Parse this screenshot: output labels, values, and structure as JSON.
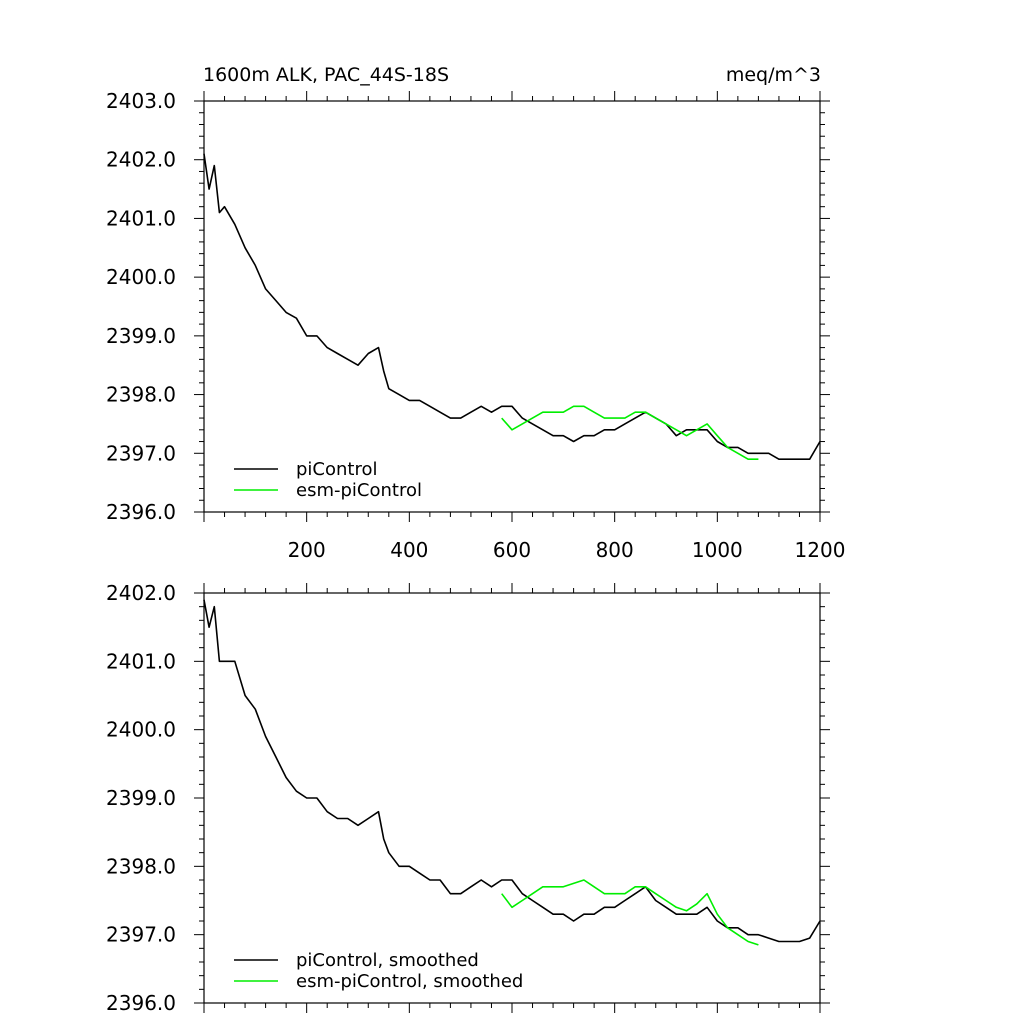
{
  "chart_data": [
    {
      "type": "line",
      "title": "1600m ALK, PAC_44S-18S",
      "units": "meq/m^3",
      "xlim": [
        0,
        1200
      ],
      "ylim": [
        2396.0,
        2403.0
      ],
      "x_ticks": [
        200,
        400,
        600,
        800,
        1000,
        1200
      ],
      "x_tick_labels": [
        "200",
        "400",
        "600",
        "800",
        "1000",
        "1200"
      ],
      "y_ticks": [
        2396.0,
        2397.0,
        2398.0,
        2399.0,
        2400.0,
        2401.0,
        2402.0,
        2403.0
      ],
      "y_tick_labels": [
        "2396.0",
        "2397.0",
        "2398.0",
        "2399.0",
        "2400.0",
        "2401.0",
        "2402.0",
        "2403.0"
      ],
      "legend": [
        "piControl",
        "esm-piControl"
      ],
      "legend_position": "bottom-left",
      "series": [
        {
          "name": "piControl",
          "color": "#000000",
          "x": [
            0,
            10,
            20,
            30,
            40,
            60,
            80,
            100,
            120,
            140,
            160,
            180,
            200,
            220,
            240,
            260,
            280,
            300,
            320,
            340,
            350,
            360,
            380,
            400,
            420,
            440,
            460,
            480,
            500,
            520,
            540,
            560,
            580,
            600,
            620,
            640,
            660,
            680,
            700,
            720,
            740,
            760,
            780,
            800,
            820,
            840,
            860,
            880,
            900,
            920,
            940,
            960,
            980,
            1000,
            1020,
            1040,
            1060,
            1080,
            1100,
            1120,
            1140,
            1160,
            1180,
            1200
          ],
          "y": [
            2402.1,
            2401.5,
            2401.9,
            2401.1,
            2401.2,
            2400.9,
            2400.5,
            2400.2,
            2399.8,
            2399.6,
            2399.4,
            2399.3,
            2399.0,
            2399.0,
            2398.8,
            2398.7,
            2398.6,
            2398.5,
            2398.7,
            2398.8,
            2398.4,
            2398.1,
            2398.0,
            2397.9,
            2397.9,
            2397.8,
            2397.7,
            2397.6,
            2397.6,
            2397.7,
            2397.8,
            2397.7,
            2397.8,
            2397.8,
            2397.6,
            2397.5,
            2397.4,
            2397.3,
            2397.3,
            2397.2,
            2397.3,
            2397.3,
            2397.4,
            2397.4,
            2397.5,
            2397.6,
            2397.7,
            2397.6,
            2397.5,
            2397.3,
            2397.4,
            2397.4,
            2397.4,
            2397.2,
            2397.1,
            2397.1,
            2397.0,
            2397.0,
            2397.0,
            2396.9,
            2396.9,
            2396.9,
            2396.9,
            2397.2
          ]
        },
        {
          "name": "esm-piControl",
          "color": "#00ee00",
          "x": [
            580,
            600,
            620,
            640,
            660,
            680,
            700,
            720,
            740,
            760,
            780,
            800,
            820,
            840,
            860,
            880,
            900,
            920,
            940,
            960,
            980,
            1000,
            1020,
            1040,
            1060,
            1080
          ],
          "y": [
            2397.6,
            2397.4,
            2397.5,
            2397.6,
            2397.7,
            2397.7,
            2397.7,
            2397.8,
            2397.8,
            2397.7,
            2397.6,
            2397.6,
            2397.6,
            2397.7,
            2397.7,
            2397.6,
            2397.5,
            2397.4,
            2397.3,
            2397.4,
            2397.5,
            2397.3,
            2397.1,
            2397.0,
            2396.9,
            2396.9
          ]
        }
      ]
    },
    {
      "type": "line",
      "xlim": [
        0,
        1200
      ],
      "ylim": [
        2396.0,
        2402.0
      ],
      "x_ticks": [
        200,
        400,
        600,
        800,
        1000,
        1200
      ],
      "y_ticks": [
        2396.0,
        2397.0,
        2398.0,
        2399.0,
        2400.0,
        2401.0,
        2402.0
      ],
      "y_tick_labels": [
        "2396.0",
        "2397.0",
        "2398.0",
        "2399.0",
        "2400.0",
        "2401.0",
        "2402.0"
      ],
      "legend": [
        "piControl, smoothed",
        "esm-piControl, smoothed"
      ],
      "legend_position": "bottom-left",
      "series": [
        {
          "name": "piControl, smoothed",
          "color": "#000000",
          "x": [
            0,
            10,
            20,
            30,
            40,
            60,
            80,
            100,
            120,
            140,
            160,
            180,
            200,
            220,
            240,
            260,
            280,
            300,
            320,
            340,
            350,
            360,
            380,
            400,
            420,
            440,
            460,
            480,
            500,
            520,
            540,
            560,
            580,
            600,
            620,
            640,
            660,
            680,
            700,
            720,
            740,
            760,
            780,
            800,
            820,
            840,
            860,
            880,
            900,
            920,
            940,
            960,
            980,
            1000,
            1020,
            1040,
            1060,
            1080,
            1100,
            1120,
            1140,
            1160,
            1180,
            1200
          ],
          "y": [
            2401.9,
            2401.5,
            2401.8,
            2401.0,
            2401.0,
            2401.0,
            2400.5,
            2400.3,
            2399.9,
            2399.6,
            2399.3,
            2399.1,
            2399.0,
            2399.0,
            2398.8,
            2398.7,
            2398.7,
            2398.6,
            2398.7,
            2398.8,
            2398.4,
            2398.2,
            2398.0,
            2398.0,
            2397.9,
            2397.8,
            2397.8,
            2397.6,
            2397.6,
            2397.7,
            2397.8,
            2397.7,
            2397.8,
            2397.8,
            2397.6,
            2397.5,
            2397.4,
            2397.3,
            2397.3,
            2397.2,
            2397.3,
            2397.3,
            2397.4,
            2397.4,
            2397.5,
            2397.6,
            2397.7,
            2397.5,
            2397.4,
            2397.3,
            2397.3,
            2397.3,
            2397.4,
            2397.2,
            2397.1,
            2397.1,
            2397.0,
            2397.0,
            2396.95,
            2396.9,
            2396.9,
            2396.9,
            2396.95,
            2397.2
          ]
        },
        {
          "name": "esm-piControl, smoothed",
          "color": "#00ee00",
          "x": [
            580,
            600,
            620,
            640,
            660,
            680,
            700,
            720,
            740,
            760,
            780,
            800,
            820,
            840,
            860,
            880,
            900,
            920,
            940,
            960,
            980,
            1000,
            1020,
            1040,
            1060,
            1080
          ],
          "y": [
            2397.6,
            2397.4,
            2397.5,
            2397.6,
            2397.7,
            2397.7,
            2397.7,
            2397.75,
            2397.8,
            2397.7,
            2397.6,
            2397.6,
            2397.6,
            2397.7,
            2397.7,
            2397.6,
            2397.5,
            2397.4,
            2397.35,
            2397.45,
            2397.6,
            2397.3,
            2397.1,
            2397.0,
            2396.9,
            2396.85
          ]
        }
      ]
    }
  ]
}
